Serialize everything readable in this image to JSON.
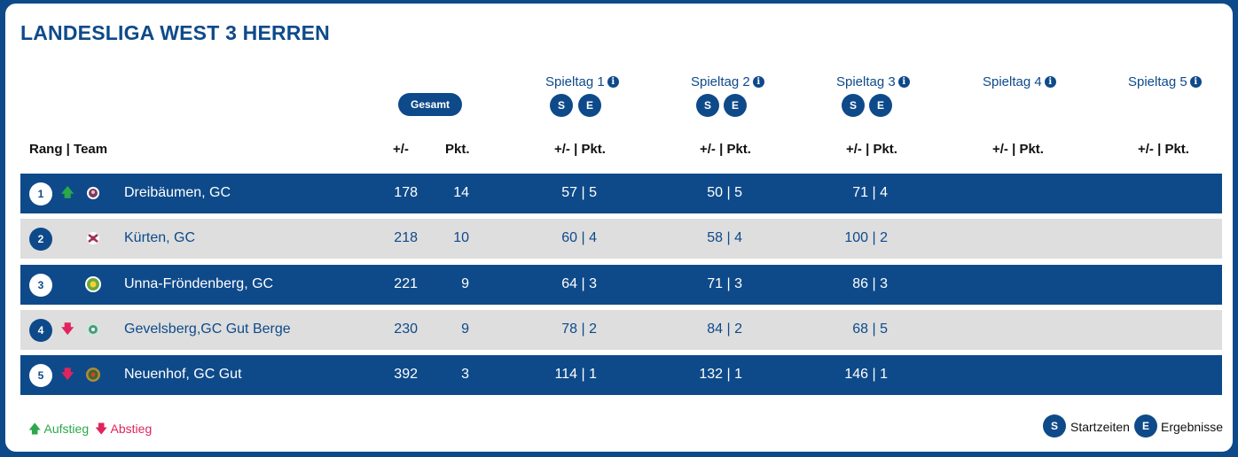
{
  "title": "LANDESLIGA WEST 3 HERREN",
  "gesamt_label": "Gesamt",
  "spieltage": [
    {
      "label": "Spieltag 1",
      "buttons": [
        "S",
        "E"
      ]
    },
    {
      "label": "Spieltag 2",
      "buttons": [
        "S",
        "E"
      ]
    },
    {
      "label": "Spieltag 3",
      "buttons": [
        "S",
        "E"
      ]
    },
    {
      "label": "Spieltag 4",
      "buttons": []
    },
    {
      "label": "Spieltag 5",
      "buttons": []
    }
  ],
  "info_glyph": "i",
  "headers": {
    "rang_team": "Rang | Team",
    "plusminus": "+/-",
    "pkt": "Pkt.",
    "spieltag_col": "+/- | Pkt."
  },
  "rows": [
    {
      "rank": "1",
      "trend": "up",
      "team": "Dreibäumen, GC",
      "plusminus": "178",
      "pkt": "14",
      "st": [
        "57 | 5",
        "50 | 5",
        "71 | 4",
        "",
        ""
      ],
      "logo_color": "#7a3b5c"
    },
    {
      "rank": "2",
      "trend": "",
      "team": "Kürten, GC",
      "plusminus": "218",
      "pkt": "10",
      "st": [
        "60 | 4",
        "58 | 4",
        "100 | 2",
        "",
        ""
      ],
      "logo_color": "#a03050"
    },
    {
      "rank": "3",
      "trend": "",
      "team": "Unna-Fröndenberg, GC",
      "plusminus": "221",
      "pkt": "9",
      "st": [
        "64 | 3",
        "71 | 3",
        "86 | 3",
        "",
        ""
      ],
      "logo_color": "#6aa83a"
    },
    {
      "rank": "4",
      "trend": "down",
      "team": "Gevelsberg,GC Gut Berge",
      "plusminus": "230",
      "pkt": "9",
      "st": [
        "78 | 2",
        "84 | 2",
        "68 | 5",
        "",
        ""
      ],
      "logo_color": "#4a9a7a"
    },
    {
      "rank": "5",
      "trend": "down",
      "team": "Neuenhof, GC Gut",
      "plusminus": "392",
      "pkt": "3",
      "st": [
        "114 | 1",
        "132 | 1",
        "146 | 1",
        "",
        ""
      ],
      "logo_color": "#b5893a"
    }
  ],
  "legend": {
    "aufstieg": "Aufstieg",
    "abstieg": "Abstieg",
    "s_glyph": "S",
    "startzeiten": "Startzeiten",
    "e_glyph": "E",
    "ergebnisse": "Ergebnisse"
  },
  "colors": {
    "navy": "#0e4a8a",
    "up": "#2aa84a",
    "down": "#e0245e",
    "row_light": "#dedede"
  }
}
